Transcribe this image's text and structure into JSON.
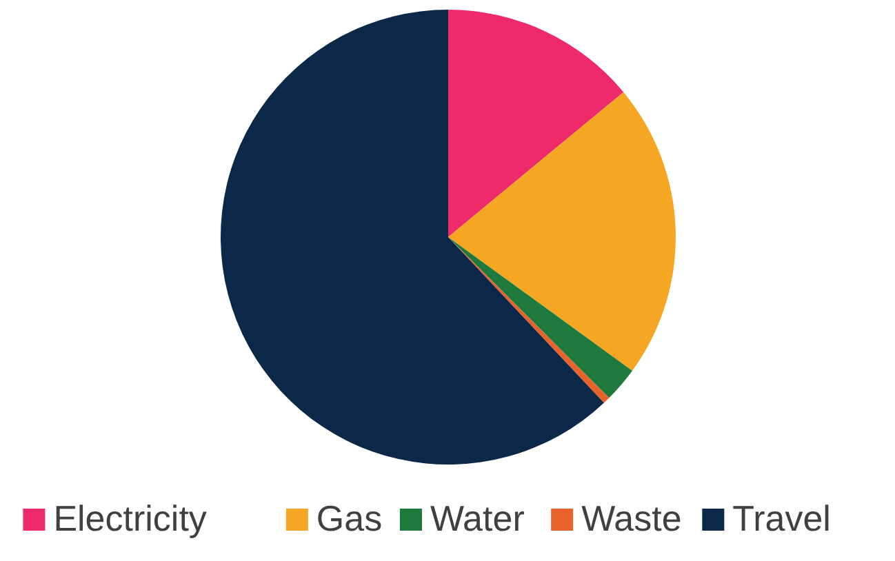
{
  "chart_data": {
    "type": "pie",
    "categories": [
      "Electricity",
      "Gas",
      "Water",
      "Waste",
      "Travel"
    ],
    "values": [
      14,
      21,
      2.5,
      0.5,
      62
    ],
    "colors": [
      "#ee2a6b",
      "#f5a623",
      "#1e7a3c",
      "#e8622a",
      "#0c2849"
    ],
    "legend": "bottom"
  }
}
